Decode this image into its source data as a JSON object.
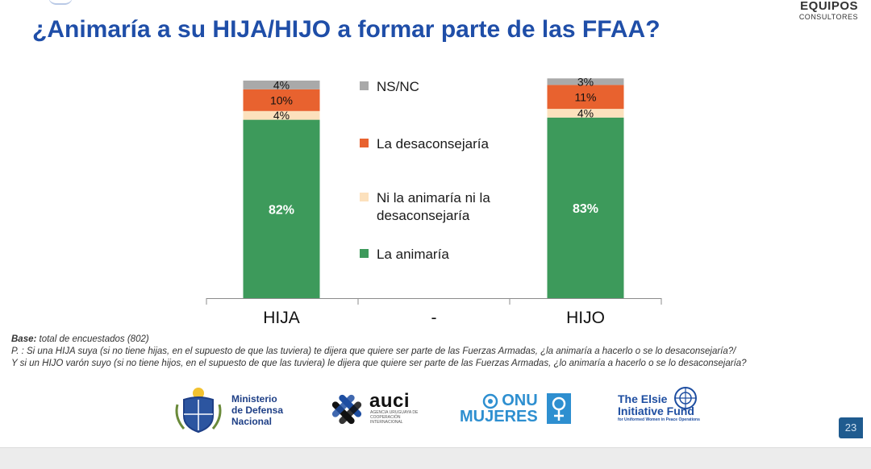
{
  "brand": {
    "line1": "EQUIPOS",
    "line2": "CONSULTORES"
  },
  "title": "¿Animaría a su HIJA/HIJO a formar parte de las FFAA?",
  "chart_data": {
    "type": "bar",
    "stacked": true,
    "categories": [
      "HIJA",
      "-",
      "HIJO"
    ],
    "series": [
      {
        "name": "La animaría",
        "color": "#3d9a5b",
        "values": [
          82,
          null,
          83
        ],
        "labels": [
          "82%",
          "",
          "83%"
        ]
      },
      {
        "name": "Ni la animaría ni la desaconsejaría",
        "color": "#fce1bd",
        "values": [
          4,
          null,
          4
        ],
        "labels": [
          "4%",
          "",
          "4%"
        ]
      },
      {
        "name": "La desaconsejaría",
        "color": "#e8622f",
        "values": [
          10,
          null,
          11
        ],
        "labels": [
          "10%",
          "",
          "11%"
        ]
      },
      {
        "name": "NS/NC",
        "color": "#a9a9a9",
        "values": [
          4,
          null,
          3
        ],
        "labels": [
          "4%",
          "",
          "3%"
        ]
      }
    ],
    "ylim": [
      0,
      100
    ],
    "legend_position": "center",
    "grid": false
  },
  "legend": [
    {
      "label": "NS/NC",
      "color": "#a9a9a9"
    },
    {
      "label": "La desaconsejaría",
      "color": "#e8622f"
    },
    {
      "label": "Ni la animaría ni la desaconsejaría",
      "color": "#fce1bd"
    },
    {
      "label": "La animaría",
      "color": "#3d9a5b"
    }
  ],
  "notes": {
    "base_label": "Base:",
    "base_text": " total de encuestados (802)",
    "q_label": "P. :",
    "q1": " Si una HIJA suya (si no tiene hijas, en el supuesto de que las tuviera) te dijera que quiere ser parte de las Fuerzas Armadas, ¿la animaría a hacerlo o se lo desaconsejaría?/",
    "q2": "Y si un HIJO varón suyo (si no tiene hijos, en el supuesto de que las tuviera) le dijera que quiere ser parte de las Fuerzas Armadas, ¿lo animaría a hacerlo o se lo desaconsejaría?"
  },
  "logos": {
    "mindef": [
      "Ministerio",
      "de Defensa",
      "Nacional"
    ],
    "auci": "auci",
    "auci_sub": "AGENCIA URUGUAYA DE COOPERACIÓN INTERNACIONAL",
    "onu": [
      "ONU",
      "MUJERES"
    ],
    "elsie": [
      "The Elsie",
      "Initiative Fund",
      "for Uniformed Women in Peace Operations"
    ]
  },
  "page_number": "23"
}
